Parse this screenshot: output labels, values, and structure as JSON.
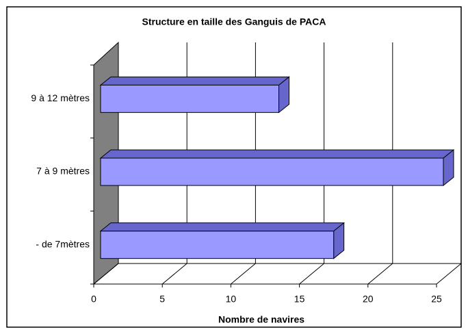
{
  "chart_data": {
    "type": "bar",
    "title": "Structure en taille des Ganguis de PACA",
    "categories": [
      "- de 7mètres",
      "7 à 9 mètres",
      "9 à 12 mètres"
    ],
    "values": [
      17,
      25,
      13
    ],
    "color": "#9999ff",
    "xlabel": "Nombre de navires",
    "xlim": [
      0,
      25
    ],
    "xticks": [
      0,
      5,
      10,
      15,
      20,
      25
    ],
    "grid": true
  }
}
